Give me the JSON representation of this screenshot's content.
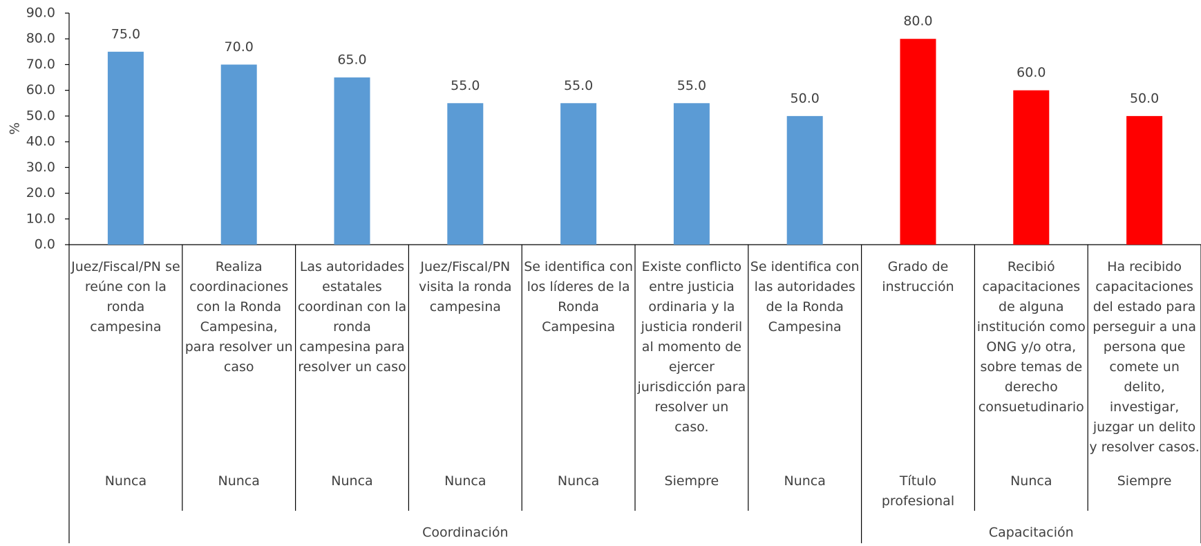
{
  "chart_data": {
    "type": "bar",
    "y_label": "%",
    "categories": [
      "Juez/Fiscal/PN se reúne con la ronda campesina",
      "Realiza coordinaciones con la Ronda Campesina, para resolver un caso",
      "Las autoridades estatales coordinan con la ronda campesina para resolver un caso",
      "Juez/Fiscal/PN visita la ronda campesina",
      "Se identifica con los líderes de la Ronda Campesina",
      "Existe conflicto entre justicia ordinaria y la justicia ronderil al momento de ejercer jurisdicción para resolver un caso.",
      "Se identifica con las autoridades de la Ronda Campesina",
      "Grado de instrucción",
      "Recibió capacitaciones de alguna institución como ONG y/o otra, sobre temas de derecho consuetudinario",
      "Ha recibido capacitaciones del estado para perseguir a una persona que comete un delito, investigar, juzgar un delito y resolver casos."
    ],
    "sublabels": [
      "Nunca",
      "Nunca",
      "Nunca",
      "Nunca",
      "Nunca",
      "Siempre",
      "Nunca",
      "Título profesional",
      "Nunca",
      "Siempre"
    ],
    "groups": [
      {
        "name": "Coordinación",
        "count": 7
      },
      {
        "name": "Capacitación",
        "count": 3
      }
    ],
    "values": [
      75,
      70,
      65,
      55,
      55,
      55,
      50,
      80,
      60,
      50
    ],
    "value_labels": [
      "75.0",
      "70.0",
      "65.0",
      "55.0",
      "55.0",
      "55.0",
      "50.0",
      "80.0",
      "60.0",
      "50.0"
    ],
    "colors": [
      "#5b9bd5",
      "#5b9bd5",
      "#5b9bd5",
      "#5b9bd5",
      "#5b9bd5",
      "#5b9bd5",
      "#5b9bd5",
      "#ff0000",
      "#ff0000",
      "#ff0000"
    ],
    "ylim": [
      0,
      90
    ],
    "yticks": [
      {
        "value": 0,
        "label": "0.0"
      },
      {
        "value": 10,
        "label": "10.0"
      },
      {
        "value": 20,
        "label": "20.0"
      },
      {
        "value": 30,
        "label": "30.0"
      },
      {
        "value": 40,
        "label": "40.0"
      },
      {
        "value": 50,
        "label": "50.0"
      },
      {
        "value": 60,
        "label": "60.0"
      },
      {
        "value": 70,
        "label": "70.0"
      },
      {
        "value": 80,
        "label": "80.0"
      },
      {
        "value": 90,
        "label": "90.0"
      }
    ],
    "grid": false
  }
}
